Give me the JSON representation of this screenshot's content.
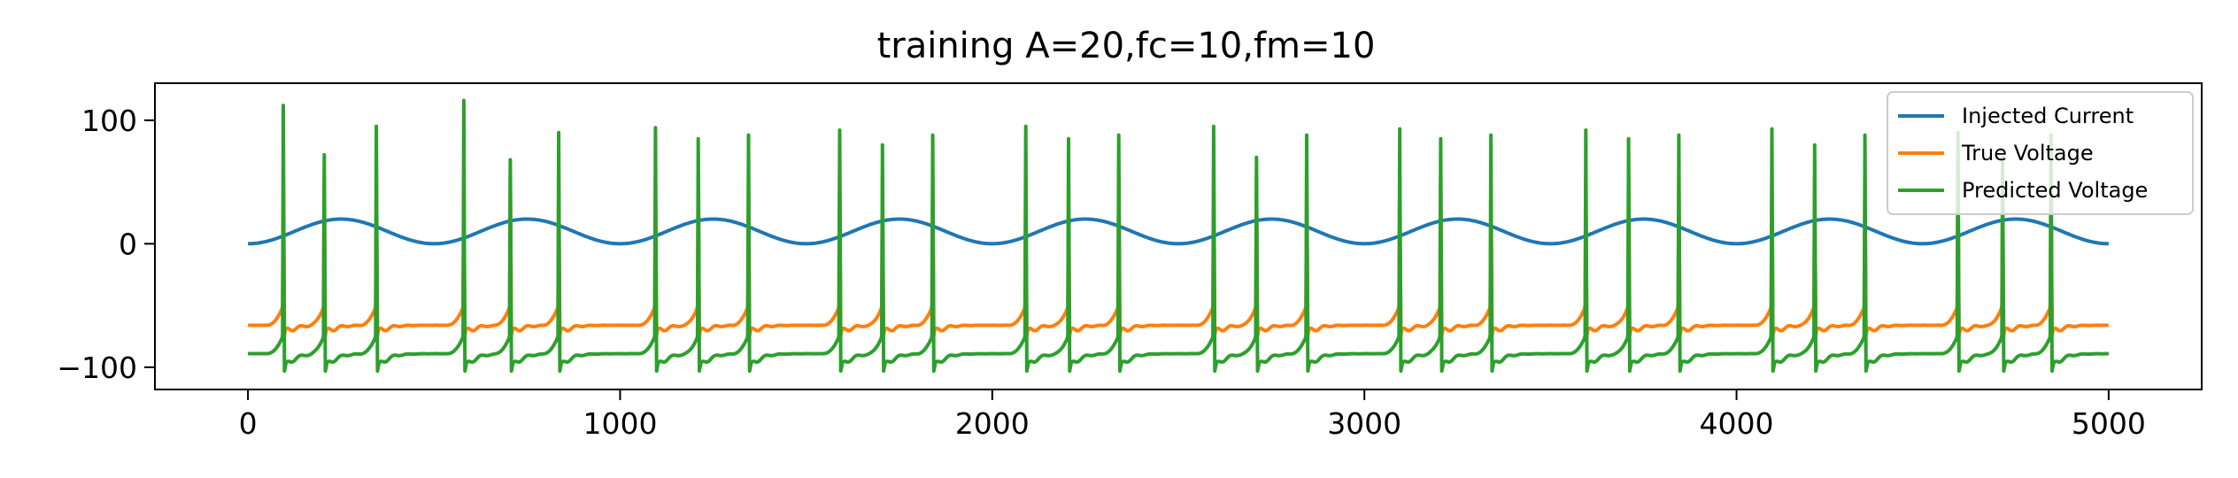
{
  "chart_data": {
    "type": "line",
    "title": "training A=20,fc=10,fm=10",
    "xlabel": "",
    "ylabel": "",
    "xlim": [
      -250,
      5250
    ],
    "ylim": [
      -118,
      130
    ],
    "x_ticks": [
      0,
      1000,
      2000,
      3000,
      4000,
      5000
    ],
    "x_tick_labels": [
      "0",
      "1000",
      "2000",
      "3000",
      "4000",
      "5000"
    ],
    "y_ticks": [
      100,
      0,
      -100
    ],
    "y_tick_labels": [
      "100",
      "0",
      "−100"
    ],
    "grid": false,
    "legend_position": "upper-right",
    "x_range": [
      0,
      5000
    ],
    "series": [
      {
        "name": "Injected Current",
        "color": "#1f77b4",
        "kind": "sine",
        "amplitude": 10,
        "offset": 10,
        "period": 500,
        "phase_start": "trough"
      },
      {
        "name": "True Voltage",
        "color": "#ff7f0e",
        "kind": "spiking",
        "rest": -66,
        "reset": -74,
        "peak": 55,
        "threshold": -50,
        "spike_times": [
          95,
          205,
          345,
          580,
          705,
          835,
          1095,
          1210,
          1345,
          1590,
          1705,
          1840,
          2090,
          2205,
          2340,
          2595,
          2710,
          2845,
          3095,
          3205,
          3340,
          3595,
          3710,
          3845,
          4095,
          4210,
          4345,
          4595,
          4715,
          4845
        ]
      },
      {
        "name": "Predicted Voltage",
        "color": "#2ca02c",
        "kind": "spiking",
        "rest": -89,
        "reset": -103,
        "peak": 90,
        "threshold": -74,
        "spike_times": [
          95,
          205,
          345,
          580,
          705,
          835,
          1095,
          1210,
          1345,
          1590,
          1705,
          1840,
          2090,
          2205,
          2340,
          2595,
          2710,
          2845,
          3095,
          3205,
          3340,
          3595,
          3710,
          3845,
          4095,
          4210,
          4345,
          4595,
          4715,
          4845
        ],
        "spike_peaks": [
          112,
          72,
          95,
          116,
          68,
          90,
          94,
          85,
          88,
          92,
          80,
          88,
          95,
          85,
          88,
          95,
          70,
          88,
          93,
          85,
          88,
          92,
          85,
          88,
          93,
          80,
          88,
          90,
          70,
          88
        ]
      }
    ]
  }
}
